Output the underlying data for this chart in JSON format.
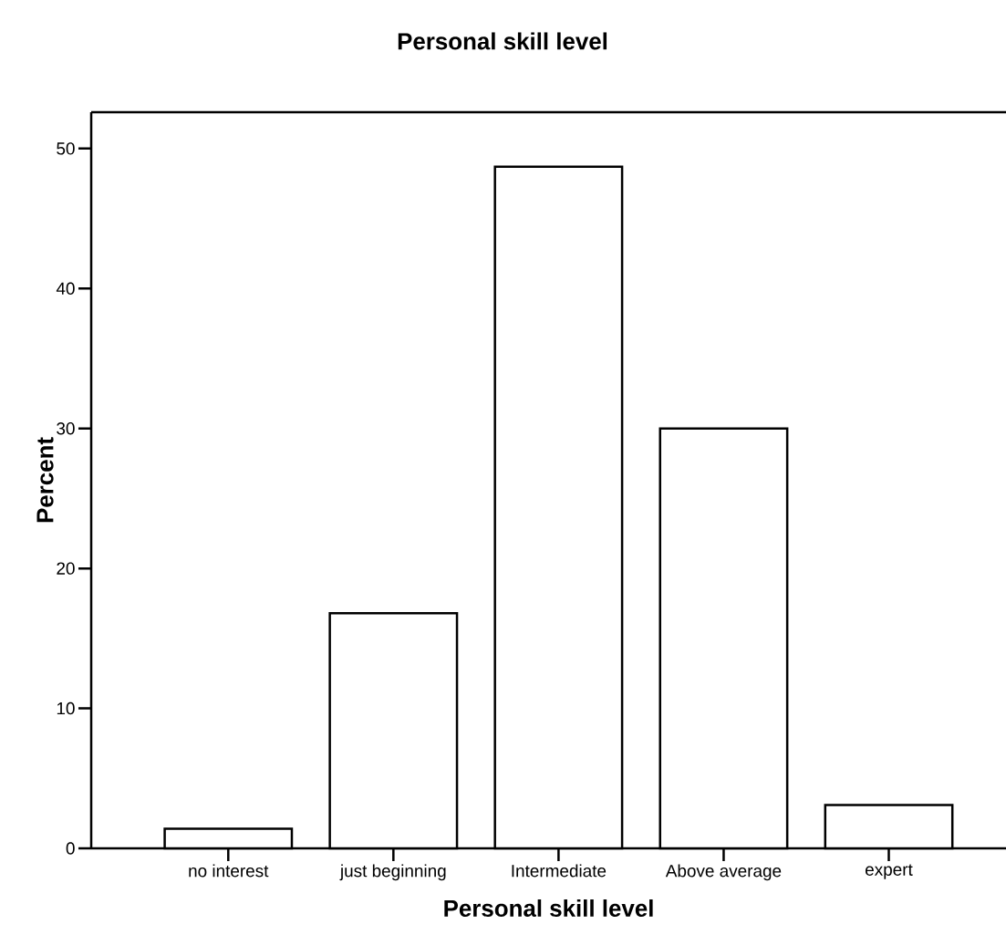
{
  "chart_data": {
    "type": "bar",
    "title": "Personal skill level",
    "xlabel": "Personal skill level",
    "ylabel": "Percent",
    "categories": [
      "no interest",
      "just beginning",
      "Intermediate",
      "Above average",
      "expert"
    ],
    "values": [
      1.4,
      16.8,
      48.7,
      30.0,
      3.1
    ],
    "color": "#ffffff",
    "ylim": [
      0,
      52.6
    ],
    "yticks": [
      0,
      10,
      20,
      30,
      40,
      50
    ],
    "grid": false
  }
}
